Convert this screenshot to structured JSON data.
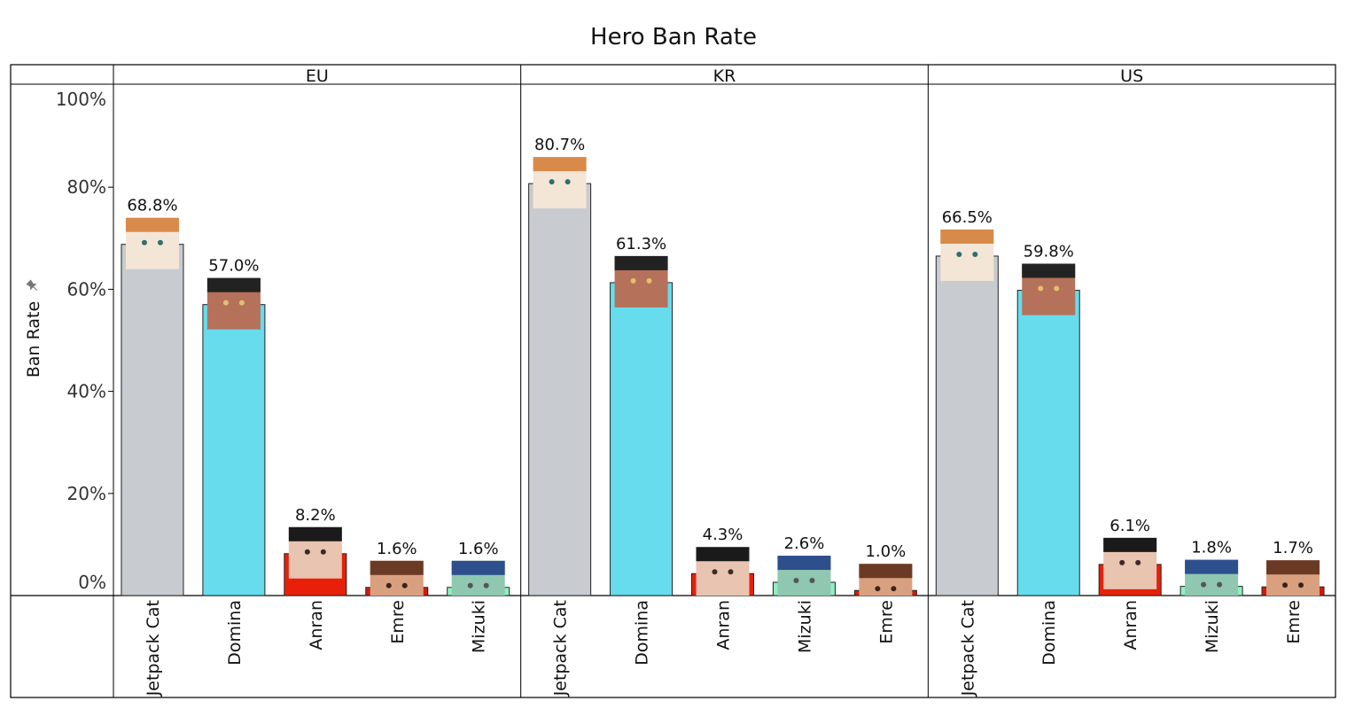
{
  "chart_data": {
    "type": "bar",
    "title": "Hero Ban Rate",
    "ylabel": "Ban Rate",
    "ylim": [
      0,
      100
    ],
    "yticks": [
      "0%",
      "20%",
      "40%",
      "60%",
      "80%",
      "100%"
    ],
    "grid": false,
    "legend": "none",
    "hero_colors": {
      "Jetpack Cat": "#c8cbd0",
      "Domina": "#66dcec",
      "Anran": "#e8200a",
      "Emre": "#d01a10",
      "Mizuki": "#90f0c0"
    },
    "panels": [
      {
        "region": "EU",
        "categories": [
          "Jetpack Cat",
          "Domina",
          "Anran",
          "Emre",
          "Mizuki"
        ],
        "values": [
          68.8,
          57.0,
          8.2,
          1.6,
          1.6
        ],
        "labels": [
          "68.8%",
          "57.0%",
          "8.2%",
          "1.6%",
          "1.6%"
        ]
      },
      {
        "region": "KR",
        "categories": [
          "Jetpack Cat",
          "Domina",
          "Anran",
          "Mizuki",
          "Emre"
        ],
        "values": [
          80.7,
          61.3,
          4.3,
          2.6,
          1.0
        ],
        "labels": [
          "80.7%",
          "61.3%",
          "4.3%",
          "2.6%",
          "1.0%"
        ]
      },
      {
        "region": "US",
        "categories": [
          "Jetpack Cat",
          "Domina",
          "Anran",
          "Mizuki",
          "Emre"
        ],
        "values": [
          66.5,
          59.8,
          6.1,
          1.8,
          1.7
        ],
        "labels": [
          "66.5%",
          "59.8%",
          "6.1%",
          "1.8%",
          "1.7%"
        ]
      }
    ]
  }
}
